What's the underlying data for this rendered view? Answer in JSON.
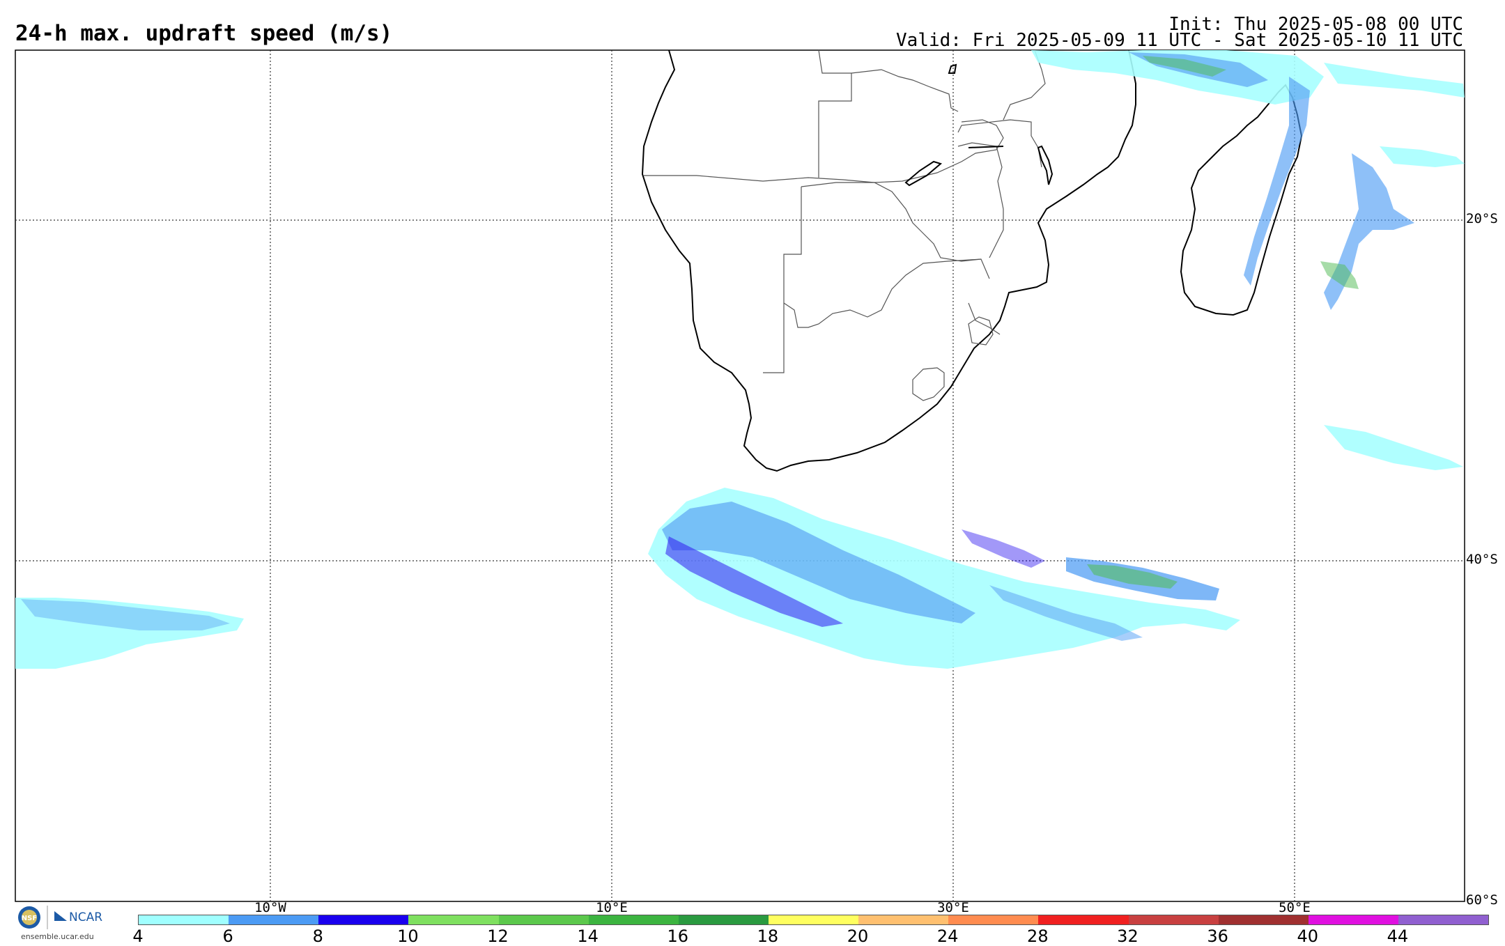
{
  "header": {
    "title": "24-h max. updraft speed (m/s)",
    "init": "Init: Thu 2025-05-08 00 UTC",
    "valid": "Valid: Fri 2025-05-09 11 UTC - Sat 2025-05-10 11 UTC"
  },
  "map": {
    "lat_labels": [
      "20°S",
      "40°S",
      "60°S"
    ],
    "lon_labels": [
      "10°W",
      "10°E",
      "30°E",
      "50°E"
    ]
  },
  "colorbar": {
    "ticks": [
      "4",
      "6",
      "8",
      "10",
      "12",
      "14",
      "16",
      "18",
      "20",
      "24",
      "28",
      "32",
      "36",
      "40",
      "44"
    ],
    "colors": [
      "#a0ffff",
      "#4c9bf4",
      "#1a00ee",
      "#7fe060",
      "#5cc84c",
      "#3cb440",
      "#2a9a40",
      "#ffff60",
      "#ffc070",
      "#ff8c50",
      "#f02020",
      "#c84040",
      "#a03030",
      "#e010e0",
      "#9060d0"
    ]
  },
  "footer": {
    "org_label": "NCAR",
    "url": "ensemble.ucar.edu",
    "nsf_label": "NSF"
  }
}
